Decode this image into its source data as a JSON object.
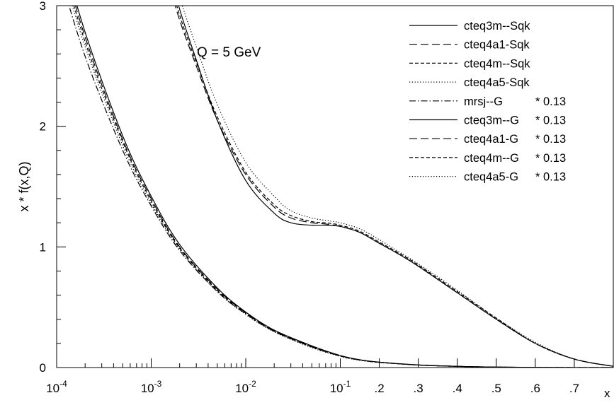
{
  "chart_data": {
    "type": "line",
    "title": "",
    "xlabel": "x",
    "ylabel": "x * f(x,Q)",
    "annotation": "Q = 5 GeV",
    "x_scale": "log-with-linear-tail",
    "xlim": [
      0.0001,
      0.8
    ],
    "ylim": [
      0,
      3
    ],
    "x_ticks": [
      {
        "value": 0.0001,
        "base": "10",
        "exp": "-4",
        "label": ""
      },
      {
        "value": 0.001,
        "base": "10",
        "exp": "-3",
        "label": ""
      },
      {
        "value": 0.01,
        "base": "10",
        "exp": "-2",
        "label": ""
      },
      {
        "value": 0.1,
        "base": "10",
        "exp": "-1",
        "label": ""
      },
      {
        "value": 0.2,
        "base": "",
        "exp": "",
        "label": ".2"
      },
      {
        "value": 0.3,
        "base": "",
        "exp": "",
        "label": ".3"
      },
      {
        "value": 0.4,
        "base": "",
        "exp": "",
        "label": ".4"
      },
      {
        "value": 0.5,
        "base": "",
        "exp": "",
        "label": ".5"
      },
      {
        "value": 0.6,
        "base": "",
        "exp": "",
        "label": ".6"
      },
      {
        "value": 0.7,
        "base": "",
        "exp": "",
        "label": ".7"
      }
    ],
    "y_ticks": [
      {
        "value": 0,
        "label": "0"
      },
      {
        "value": 1,
        "label": "1"
      },
      {
        "value": 2,
        "label": "2"
      },
      {
        "value": 3,
        "label": "3"
      }
    ],
    "grid": false,
    "legend_position": "top-right",
    "series": [
      {
        "name": "cteq3m--Sqk",
        "style": "solid",
        "extra": "",
        "x": [
          0.0001,
          0.0002,
          0.0005,
          0.001,
          0.002,
          0.005,
          0.01,
          0.02,
          0.05,
          0.1,
          0.15,
          0.2,
          0.3,
          0.4,
          0.5,
          0.6,
          0.7,
          0.8
        ],
        "y": [
          3.6,
          2.78,
          1.92,
          1.42,
          1.02,
          0.66,
          0.46,
          0.31,
          0.18,
          0.1,
          0.065,
          0.045,
          0.022,
          0.01,
          0.004,
          0.0015,
          0.0004,
          0.0001
        ]
      },
      {
        "name": "cteq4a1-Sqk",
        "style": "dashed-long",
        "extra": "",
        "x": [
          0.0001,
          0.0002,
          0.0005,
          0.001,
          0.002,
          0.005,
          0.01,
          0.02,
          0.05,
          0.1,
          0.15,
          0.2,
          0.3,
          0.4,
          0.5,
          0.6,
          0.7,
          0.8
        ],
        "y": [
          3.55,
          2.74,
          1.89,
          1.4,
          1.0,
          0.65,
          0.455,
          0.305,
          0.175,
          0.098,
          0.064,
          0.044,
          0.021,
          0.01,
          0.004,
          0.0015,
          0.0004,
          0.0001
        ]
      },
      {
        "name": "cteq4m--Sqk",
        "style": "dashed-short",
        "extra": "",
        "x": [
          0.0001,
          0.0002,
          0.0005,
          0.001,
          0.002,
          0.005,
          0.01,
          0.02,
          0.05,
          0.1,
          0.15,
          0.2,
          0.3,
          0.4,
          0.5,
          0.6,
          0.7,
          0.8
        ],
        "y": [
          3.5,
          2.7,
          1.87,
          1.38,
          0.99,
          0.64,
          0.45,
          0.3,
          0.17,
          0.095,
          0.062,
          0.043,
          0.021,
          0.01,
          0.004,
          0.0015,
          0.0004,
          0.0001
        ]
      },
      {
        "name": "cteq4a5-Sqk",
        "style": "dotted",
        "extra": "",
        "x": [
          0.0001,
          0.0002,
          0.0005,
          0.001,
          0.002,
          0.005,
          0.01,
          0.02,
          0.05,
          0.1,
          0.15,
          0.2,
          0.3,
          0.4,
          0.5,
          0.6,
          0.7,
          0.8
        ],
        "y": [
          3.45,
          2.66,
          1.84,
          1.36,
          0.98,
          0.63,
          0.44,
          0.295,
          0.165,
          0.092,
          0.06,
          0.042,
          0.02,
          0.009,
          0.004,
          0.0015,
          0.0004,
          0.0001
        ]
      },
      {
        "name": "mrsj--G",
        "style": "dash-dot",
        "extra": "* 0.13",
        "x": [
          0.0001,
          0.0002,
          0.0005,
          0.001,
          0.002,
          0.005,
          0.01,
          0.02,
          0.05,
          0.1,
          0.15,
          0.2,
          0.3,
          0.4,
          0.5,
          0.6,
          0.7,
          0.8
        ],
        "y": [
          3.35,
          2.58,
          1.8,
          1.34,
          0.97,
          0.63,
          0.445,
          0.3,
          0.172,
          0.097,
          0.063,
          0.044,
          0.021,
          0.01,
          0.004,
          0.0015,
          0.0004,
          0.0001
        ]
      },
      {
        "name": "cteq3m--G",
        "style": "solid",
        "extra": "* 0.13",
        "x": [
          0.0015,
          0.002,
          0.003,
          0.005,
          0.01,
          0.02,
          0.03,
          0.05,
          0.07,
          0.1,
          0.15,
          0.2,
          0.25,
          0.3,
          0.4,
          0.5,
          0.6,
          0.7,
          0.8
        ],
        "y": [
          3.35,
          2.97,
          2.55,
          2.05,
          1.55,
          1.28,
          1.2,
          1.18,
          1.18,
          1.17,
          1.12,
          1.03,
          0.94,
          0.84,
          0.62,
          0.4,
          0.2,
          0.07,
          0.01
        ]
      },
      {
        "name": "cteq4a1-G",
        "style": "dashed-long",
        "extra": "* 0.13",
        "x": [
          0.0015,
          0.002,
          0.003,
          0.005,
          0.01,
          0.02,
          0.03,
          0.05,
          0.07,
          0.1,
          0.15,
          0.2,
          0.25,
          0.3,
          0.4,
          0.5,
          0.6,
          0.7,
          0.8
        ],
        "y": [
          3.22,
          2.88,
          2.5,
          2.05,
          1.6,
          1.33,
          1.24,
          1.2,
          1.19,
          1.17,
          1.12,
          1.03,
          0.94,
          0.84,
          0.62,
          0.4,
          0.2,
          0.07,
          0.01
        ]
      },
      {
        "name": "cteq4m--G",
        "style": "dashed-short",
        "extra": "* 0.13",
        "x": [
          0.0015,
          0.002,
          0.003,
          0.005,
          0.01,
          0.02,
          0.03,
          0.05,
          0.07,
          0.1,
          0.15,
          0.2,
          0.25,
          0.3,
          0.4,
          0.5,
          0.6,
          0.7,
          0.8
        ],
        "y": [
          3.28,
          2.92,
          2.53,
          2.08,
          1.62,
          1.35,
          1.26,
          1.21,
          1.2,
          1.18,
          1.13,
          1.04,
          0.95,
          0.85,
          0.63,
          0.41,
          0.2,
          0.07,
          0.01
        ]
      },
      {
        "name": "cteq4a5-G",
        "style": "dotted",
        "extra": "* 0.13",
        "x": [
          0.0015,
          0.002,
          0.003,
          0.005,
          0.01,
          0.02,
          0.03,
          0.05,
          0.07,
          0.1,
          0.15,
          0.2,
          0.25,
          0.3,
          0.4,
          0.5,
          0.6,
          0.7,
          0.8
        ],
        "y": [
          3.45,
          3.07,
          2.66,
          2.18,
          1.7,
          1.42,
          1.3,
          1.24,
          1.22,
          1.2,
          1.15,
          1.06,
          0.96,
          0.86,
          0.64,
          0.41,
          0.21,
          0.07,
          0.01
        ]
      }
    ]
  }
}
